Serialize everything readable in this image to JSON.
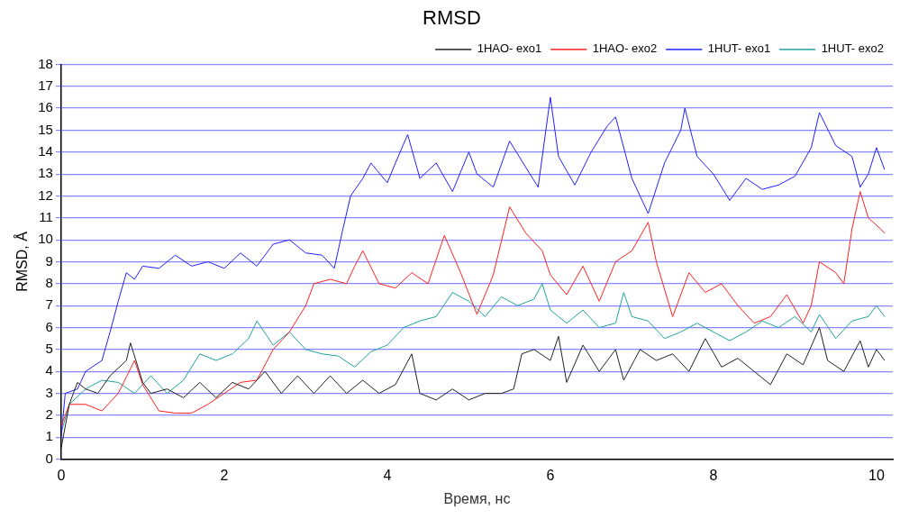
{
  "chart_data": {
    "type": "line",
    "title": "RMSD",
    "xlabel": "Время, нс",
    "ylabel": "RMSD, Å",
    "xlim": [
      0,
      10.2
    ],
    "xticks": [
      0,
      2,
      4,
      6,
      8,
      10
    ],
    "ylim": [
      0,
      18
    ],
    "yticks": [
      0,
      1,
      2,
      3,
      4,
      5,
      6,
      7,
      8,
      9,
      10,
      11,
      12,
      13,
      14,
      15,
      16,
      17,
      18
    ],
    "grid": "y",
    "legend": "top right",
    "marker": "none",
    "line_style": "solid",
    "series": [
      {
        "name": "1HAO- exo1",
        "color": "#222222",
        "x": [
          0,
          0.1,
          0.2,
          0.3,
          0.45,
          0.6,
          0.8,
          0.85,
          1.0,
          1.1,
          1.3,
          1.5,
          1.7,
          1.9,
          2.1,
          2.3,
          2.5,
          2.7,
          2.9,
          3.1,
          3.3,
          3.5,
          3.7,
          3.9,
          4.1,
          4.3,
          4.4,
          4.6,
          4.8,
          5.0,
          5.2,
          5.4,
          5.55,
          5.65,
          5.8,
          6.0,
          6.1,
          6.2,
          6.4,
          6.6,
          6.8,
          6.9,
          7.1,
          7.3,
          7.5,
          7.7,
          7.9,
          8.1,
          8.3,
          8.5,
          8.7,
          8.9,
          9.1,
          9.3,
          9.4,
          9.6,
          9.8,
          9.9,
          10.0,
          10.1
        ],
        "values": [
          0.5,
          2.5,
          3.5,
          3.2,
          3.0,
          3.8,
          4.5,
          5.3,
          3.5,
          3.0,
          3.2,
          2.8,
          3.5,
          2.8,
          3.5,
          3.2,
          4.0,
          3.0,
          3.8,
          3.0,
          3.8,
          3.0,
          3.6,
          3.0,
          3.4,
          4.8,
          3.0,
          2.7,
          3.2,
          2.7,
          3.0,
          3.0,
          3.2,
          4.8,
          5.0,
          4.5,
          5.6,
          3.5,
          5.2,
          4.0,
          5.0,
          3.6,
          5.0,
          4.5,
          4.8,
          4.0,
          5.5,
          4.2,
          4.6,
          4.0,
          3.4,
          4.8,
          4.3,
          6.0,
          4.5,
          4.0,
          5.4,
          4.2,
          5.0,
          4.5
        ]
      },
      {
        "name": "1HAO- exo2",
        "color": "#ff2020",
        "x": [
          0,
          0.1,
          0.3,
          0.5,
          0.7,
          0.9,
          1.0,
          1.2,
          1.4,
          1.6,
          1.8,
          2.0,
          2.2,
          2.4,
          2.6,
          2.8,
          3.0,
          3.1,
          3.3,
          3.5,
          3.6,
          3.7,
          3.9,
          4.1,
          4.3,
          4.5,
          4.7,
          4.9,
          5.1,
          5.3,
          5.5,
          5.7,
          5.9,
          6.0,
          6.2,
          6.4,
          6.6,
          6.8,
          7.0,
          7.2,
          7.3,
          7.5,
          7.7,
          7.9,
          8.1,
          8.3,
          8.5,
          8.7,
          8.9,
          9.1,
          9.2,
          9.3,
          9.5,
          9.6,
          9.7,
          9.8,
          9.9,
          10.05,
          10.1
        ],
        "values": [
          1.5,
          2.5,
          2.5,
          2.2,
          3.0,
          4.5,
          3.4,
          2.2,
          2.1,
          2.1,
          2.5,
          3.0,
          3.5,
          3.6,
          5.0,
          5.8,
          7.0,
          8.0,
          8.2,
          8.0,
          8.8,
          9.5,
          8.0,
          7.8,
          8.5,
          8.0,
          10.2,
          8.5,
          6.6,
          8.4,
          11.5,
          10.3,
          9.5,
          8.4,
          7.5,
          8.8,
          7.2,
          9.0,
          9.5,
          10.8,
          9.0,
          6.5,
          8.5,
          7.6,
          8.0,
          7.0,
          6.2,
          6.5,
          7.5,
          6.2,
          7.0,
          9.0,
          8.5,
          8.0,
          10.5,
          12.2,
          11.0,
          10.5,
          10.3
        ]
      },
      {
        "name": "1HUT- exo1",
        "color": "#2020ff",
        "x": [
          0,
          0.05,
          0.2,
          0.3,
          0.5,
          0.6,
          0.7,
          0.8,
          0.9,
          1.0,
          1.2,
          1.4,
          1.6,
          1.8,
          2.0,
          2.2,
          2.4,
          2.6,
          2.8,
          3.0,
          3.2,
          3.35,
          3.45,
          3.55,
          3.7,
          3.8,
          4.0,
          4.1,
          4.25,
          4.4,
          4.6,
          4.8,
          5.0,
          5.1,
          5.3,
          5.5,
          5.7,
          5.85,
          6.0,
          6.1,
          6.3,
          6.5,
          6.7,
          6.8,
          7.0,
          7.2,
          7.4,
          7.6,
          7.65,
          7.8,
          8.0,
          8.2,
          8.4,
          8.6,
          8.8,
          9.0,
          9.2,
          9.3,
          9.5,
          9.7,
          9.8,
          9.9,
          10.0,
          10.1
        ],
        "values": [
          1,
          3,
          3.2,
          4,
          4.5,
          5.8,
          7.2,
          8.5,
          8.2,
          8.8,
          8.7,
          9.3,
          8.8,
          9.0,
          8.7,
          9.4,
          8.8,
          9.8,
          10.0,
          9.4,
          9.3,
          8.7,
          10.4,
          12.0,
          12.8,
          13.5,
          12.6,
          13.5,
          14.8,
          12.8,
          13.5,
          12.2,
          14.0,
          13.0,
          12.4,
          14.5,
          13.3,
          12.4,
          16.5,
          13.8,
          12.5,
          14.0,
          15.2,
          15.6,
          12.8,
          11.2,
          13.5,
          15.0,
          16.0,
          13.8,
          13.0,
          11.8,
          12.8,
          12.3,
          12.5,
          12.9,
          14.2,
          15.8,
          14.3,
          13.8,
          12.4,
          13.0,
          14.2,
          13.2
        ]
      },
      {
        "name": "1HUT- exo2",
        "color": "#20a0a0",
        "x": [
          0,
          0.1,
          0.3,
          0.5,
          0.7,
          0.9,
          1.1,
          1.3,
          1.5,
          1.7,
          1.9,
          2.1,
          2.3,
          2.4,
          2.6,
          2.8,
          3.0,
          3.2,
          3.4,
          3.6,
          3.8,
          4.0,
          4.2,
          4.4,
          4.6,
          4.8,
          5.0,
          5.2,
          5.4,
          5.6,
          5.8,
          5.9,
          6.0,
          6.2,
          6.4,
          6.6,
          6.8,
          6.9,
          7.0,
          7.2,
          7.4,
          7.6,
          7.8,
          8.0,
          8.2,
          8.4,
          8.6,
          8.8,
          9.0,
          9.2,
          9.3,
          9.5,
          9.7,
          9.9,
          10.0,
          10.1
        ],
        "values": [
          1.2,
          2.5,
          3.2,
          3.6,
          3.5,
          3.0,
          3.8,
          3.0,
          3.6,
          4.8,
          4.5,
          4.8,
          5.5,
          6.3,
          5.2,
          5.8,
          5.0,
          4.8,
          4.7,
          4.2,
          4.9,
          5.2,
          6.0,
          6.3,
          6.5,
          7.6,
          7.2,
          6.5,
          7.4,
          7.0,
          7.3,
          8.0,
          6.8,
          6.2,
          6.8,
          6.0,
          6.2,
          7.6,
          6.5,
          6.3,
          5.5,
          5.8,
          6.2,
          5.8,
          5.4,
          5.8,
          6.3,
          6.0,
          6.5,
          5.8,
          6.6,
          5.5,
          6.3,
          6.5,
          7.0,
          6.5
        ]
      }
    ]
  }
}
